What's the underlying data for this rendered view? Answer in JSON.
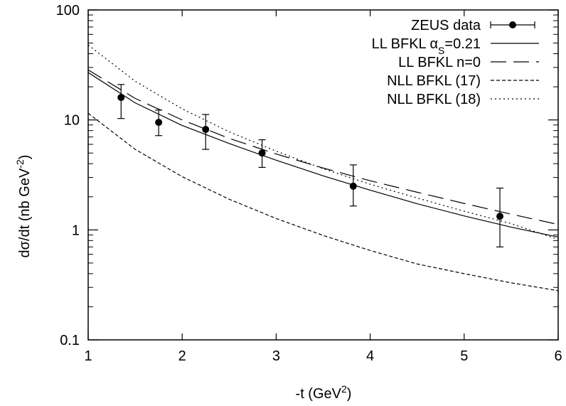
{
  "chart_data": {
    "type": "line",
    "xlabel": "-t  (GeV",
    "xlabel_sup": "2",
    "xlabel_end": ")",
    "ylabel": "dσ/dt  (nb GeV",
    "ylabel_sup": "-2",
    "ylabel_end": ")",
    "xlim": [
      1,
      6
    ],
    "ylim": [
      0.1,
      100
    ],
    "yscale": "log",
    "x_ticks": [
      1,
      2,
      3,
      4,
      5,
      6
    ],
    "x_tick_labels": [
      "1",
      "2",
      "3",
      "4",
      "5",
      "6"
    ],
    "y_ticks": [
      0.1,
      1,
      10,
      100
    ],
    "y_tick_labels": [
      "0.1",
      "1",
      "10",
      "100"
    ],
    "legend_position": "top-right",
    "grid": false,
    "data_series": {
      "name": "ZEUS data",
      "x": [
        1.35,
        1.75,
        2.25,
        2.85,
        3.82,
        5.38
      ],
      "y": [
        16.0,
        9.5,
        8.2,
        5.0,
        2.5,
        1.33
      ],
      "y_err_low": [
        10.3,
        7.2,
        5.4,
        3.7,
        1.65,
        0.7
      ],
      "y_err_high": [
        21.0,
        12.3,
        11.2,
        6.6,
        3.9,
        2.4
      ]
    },
    "series": [
      {
        "name": "LL BFKL α",
        "name_sub": "S",
        "name_end": "=0.21",
        "style": "solid",
        "x": [
          1,
          1.5,
          2,
          2.5,
          3,
          3.5,
          4,
          4.5,
          5,
          5.5,
          6
        ],
        "y": [
          27.0,
          14.3,
          8.9,
          6.1,
          4.3,
          3.1,
          2.3,
          1.73,
          1.34,
          1.06,
          0.86
        ]
      },
      {
        "name": "LL BFKL n=0",
        "style": "longdash",
        "x": [
          1,
          1.5,
          2,
          2.5,
          3,
          3.5,
          4,
          4.5,
          5,
          5.5,
          6
        ],
        "y": [
          28.5,
          15.7,
          10.0,
          6.8,
          4.9,
          3.65,
          2.8,
          2.2,
          1.74,
          1.39,
          1.12
        ]
      },
      {
        "name": "NLL BFKL (17)",
        "style": "shortdash",
        "x": [
          1,
          1.5,
          2,
          2.5,
          3,
          3.5,
          4,
          4.5,
          5,
          5.5,
          6
        ],
        "y": [
          11.5,
          5.4,
          3.05,
          1.9,
          1.27,
          0.89,
          0.65,
          0.49,
          0.4,
          0.33,
          0.28
        ]
      },
      {
        "name": "NLL BFKL (18)",
        "style": "dotted",
        "x": [
          1,
          1.5,
          2,
          2.5,
          3,
          3.5,
          4,
          4.5,
          5,
          5.5,
          6
        ],
        "y": [
          48.0,
          22.5,
          12.6,
          7.8,
          5.2,
          3.6,
          2.6,
          1.95,
          1.48,
          1.14,
          0.82
        ]
      }
    ]
  }
}
